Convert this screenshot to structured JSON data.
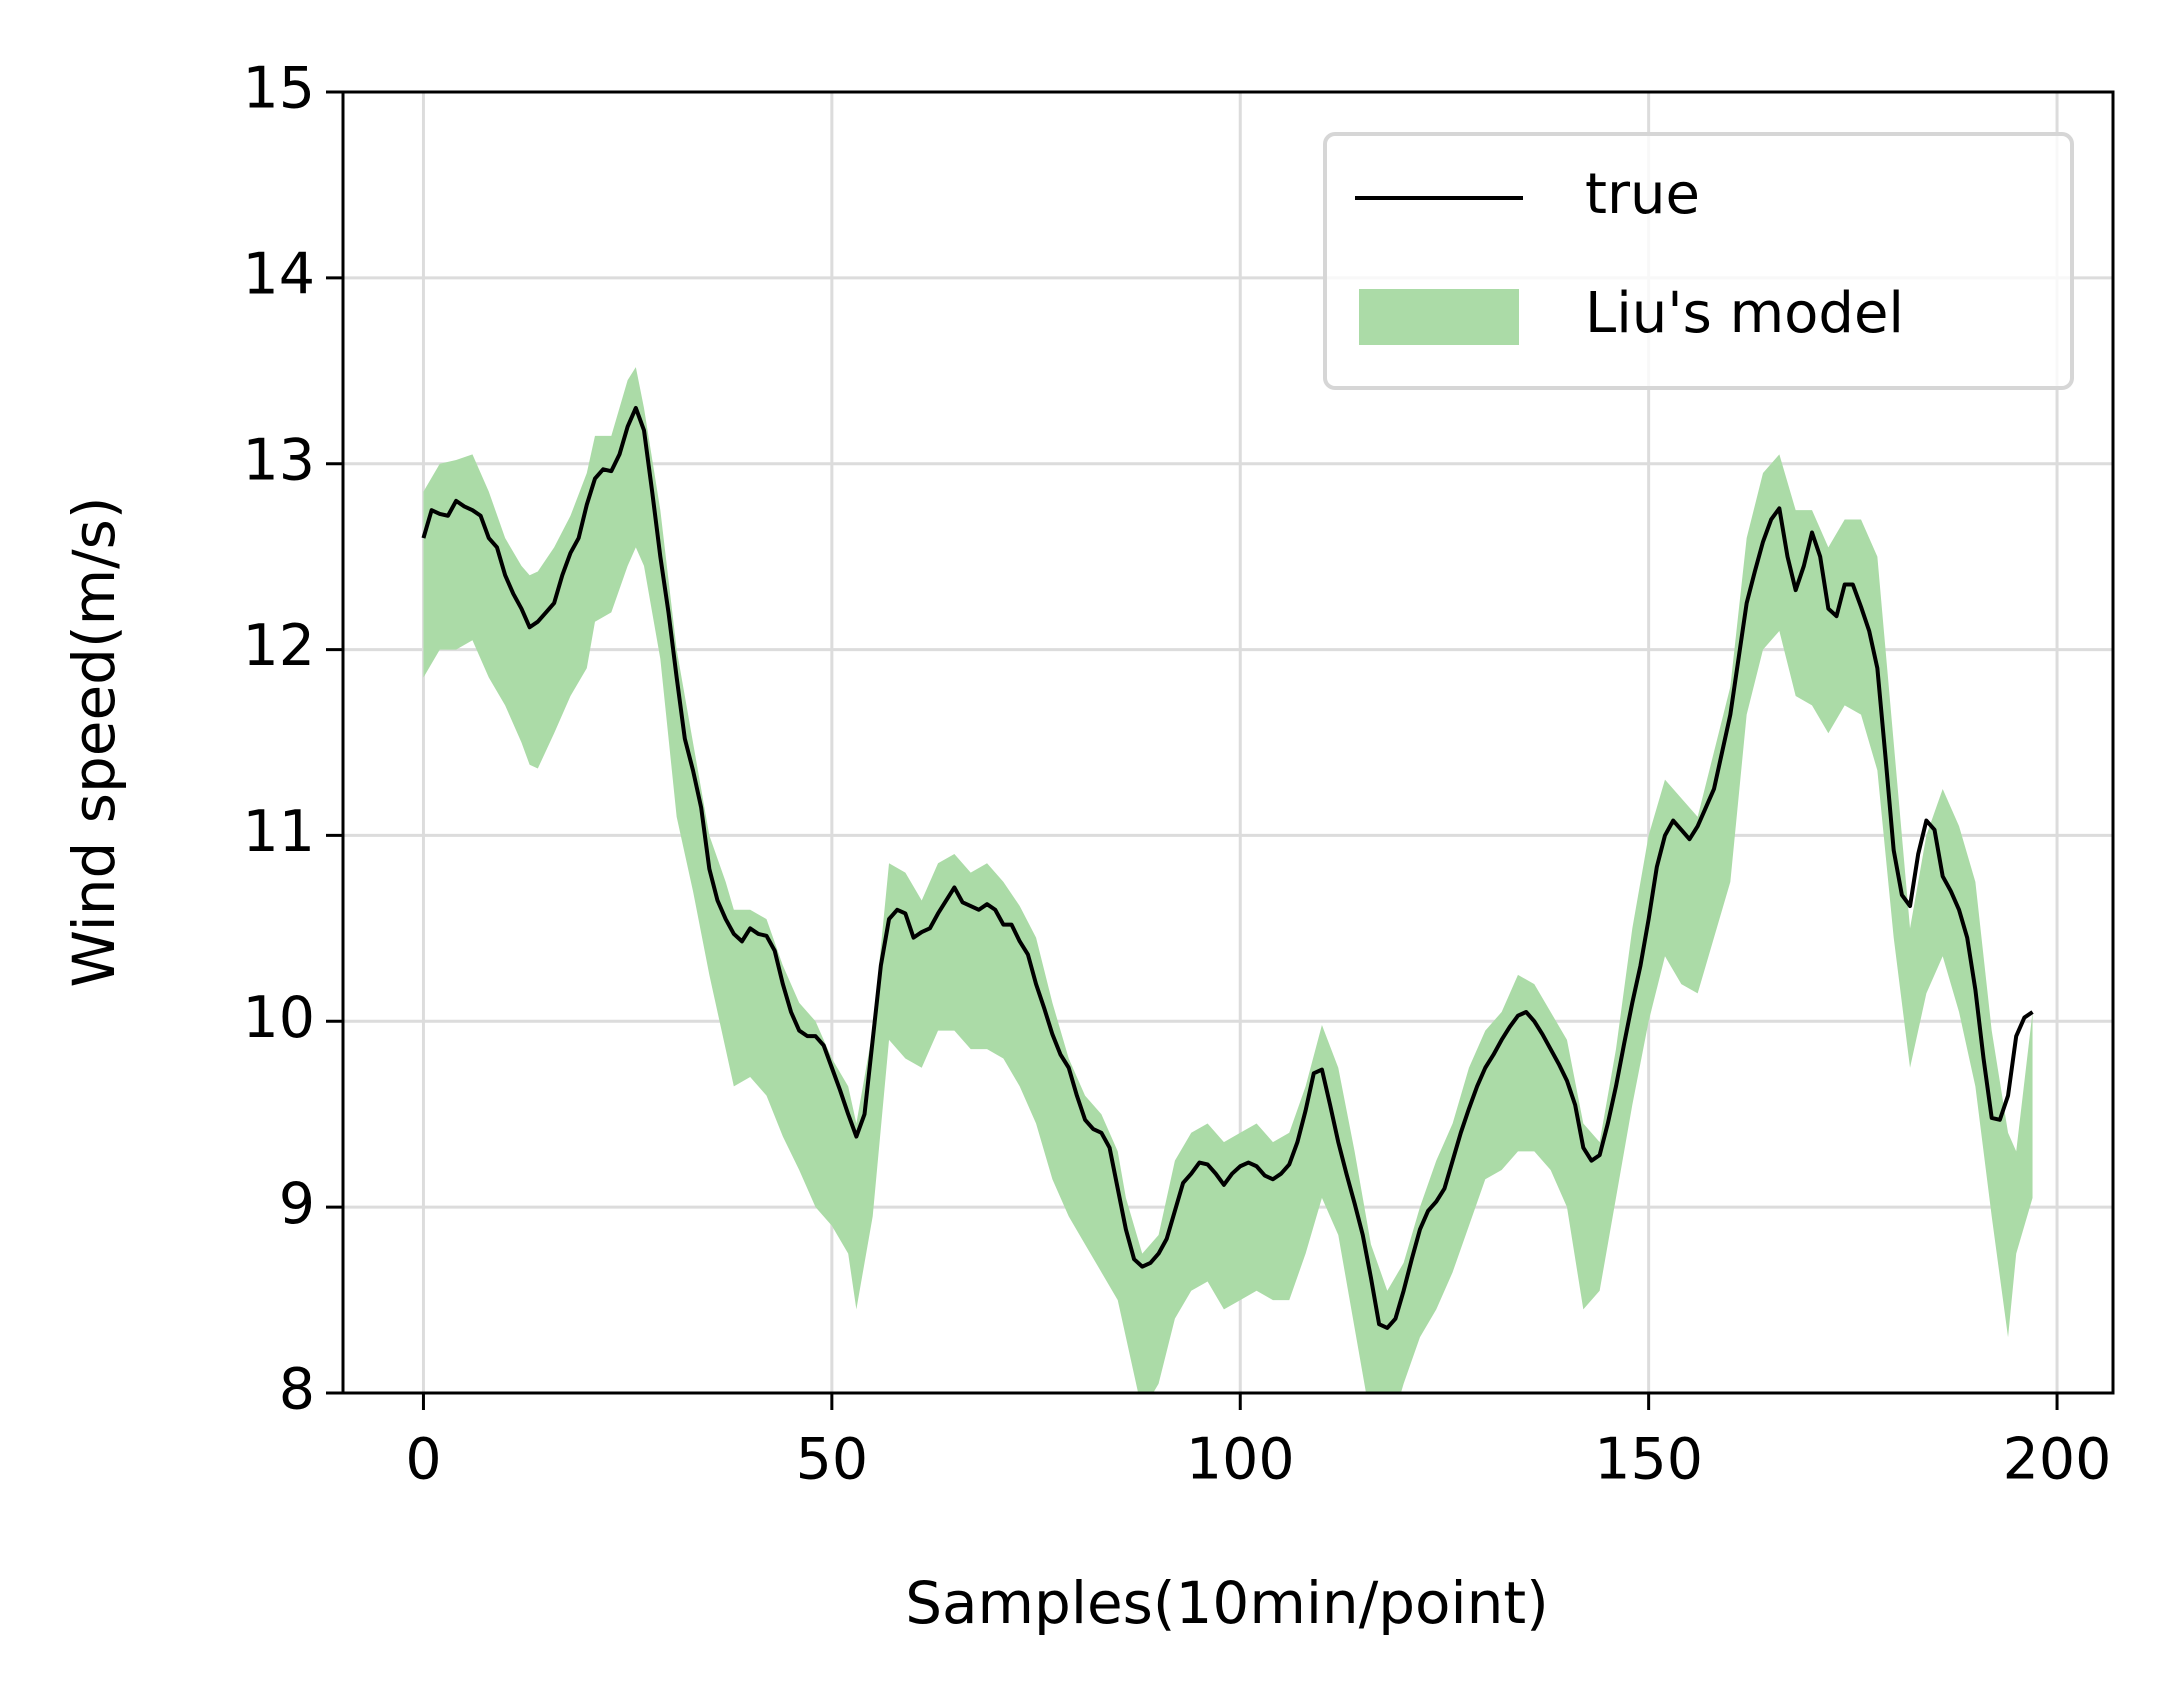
{
  "chart_data": {
    "type": "line",
    "xlabel": "Samples(10min/point)",
    "ylabel": "Wind speed(m/s)",
    "xlim": [
      -9.85,
      206.85
    ],
    "ylim": [
      8,
      15
    ],
    "xticks": [
      0,
      50,
      100,
      150,
      200
    ],
    "yticks": [
      8,
      9,
      10,
      11,
      12,
      13,
      14,
      15
    ],
    "grid": true,
    "legend": "upper right",
    "series": [
      {
        "name": "true",
        "color": "#000000",
        "x": [
          0,
          1,
          2,
          3,
          4,
          5,
          6,
          7,
          8,
          9,
          10,
          11,
          12,
          13,
          14,
          15,
          16,
          17,
          18,
          19,
          20,
          21,
          22,
          23,
          24,
          25,
          26,
          27,
          28,
          29,
          30,
          31,
          32,
          33,
          34,
          35,
          36,
          37,
          38,
          39,
          40,
          41,
          42,
          43,
          44,
          45,
          46,
          47,
          48,
          49,
          50,
          51,
          52,
          53,
          54,
          55,
          56,
          57,
          58,
          59,
          60,
          61,
          62,
          63,
          64,
          65,
          66,
          67,
          68,
          69,
          70,
          71,
          72,
          73,
          74,
          75,
          76,
          77,
          78,
          79,
          80,
          81,
          82,
          83,
          84,
          85,
          86,
          87,
          88,
          89,
          90,
          91,
          92,
          93,
          94,
          95,
          96,
          97,
          98,
          99,
          100,
          101,
          102,
          103,
          104,
          105,
          106,
          107,
          108,
          109,
          110,
          111,
          112,
          113,
          114,
          115,
          116,
          117,
          118,
          119,
          120,
          121,
          122,
          123,
          124,
          125,
          126,
          127,
          128,
          129,
          130,
          131,
          132,
          133,
          134,
          135,
          136,
          137,
          138,
          139,
          140,
          141,
          142,
          143,
          144,
          145,
          146,
          147,
          148,
          149,
          150,
          151,
          152,
          153,
          154,
          155,
          156,
          157,
          158,
          159,
          160,
          161,
          162,
          163,
          164,
          165,
          166,
          167,
          168,
          169,
          170,
          171,
          172,
          173,
          174,
          175,
          176,
          177,
          178,
          179,
          180,
          181,
          182,
          183,
          184,
          185,
          186,
          187,
          188,
          189,
          190,
          191,
          192,
          193,
          194,
          195,
          196,
          197
        ],
        "values": [
          12.6,
          12.75,
          12.73,
          12.72,
          12.8,
          12.77,
          12.75,
          12.72,
          12.6,
          12.55,
          12.4,
          12.3,
          12.22,
          12.12,
          12.15,
          12.2,
          12.25,
          12.4,
          12.52,
          12.6,
          12.78,
          12.92,
          12.97,
          12.96,
          13.05,
          13.2,
          13.3,
          13.18,
          12.85,
          12.5,
          12.2,
          11.85,
          11.52,
          11.35,
          11.15,
          10.82,
          10.65,
          10.55,
          10.47,
          10.43,
          10.5,
          10.47,
          10.46,
          10.38,
          10.2,
          10.05,
          9.95,
          9.92,
          9.92,
          9.87,
          9.75,
          9.63,
          9.5,
          9.38,
          9.5,
          9.9,
          10.3,
          10.55,
          10.6,
          10.58,
          10.45,
          10.48,
          10.5,
          10.58,
          10.65,
          10.72,
          10.64,
          10.62,
          10.6,
          10.63,
          10.6,
          10.52,
          10.52,
          10.43,
          10.36,
          10.2,
          10.07,
          9.93,
          9.82,
          9.75,
          9.6,
          9.47,
          9.42,
          9.4,
          9.32,
          9.1,
          8.88,
          8.72,
          8.68,
          8.7,
          8.75,
          8.83,
          8.98,
          9.13,
          9.18,
          9.24,
          9.23,
          9.18,
          9.12,
          9.18,
          9.22,
          9.24,
          9.22,
          9.17,
          9.15,
          9.18,
          9.23,
          9.35,
          9.52,
          9.72,
          9.74,
          9.55,
          9.35,
          9.18,
          9.02,
          8.85,
          8.62,
          8.37,
          8.35,
          8.4,
          8.55,
          8.72,
          8.88,
          8.98,
          9.03,
          9.1,
          9.25,
          9.4,
          9.53,
          9.65,
          9.75,
          9.82,
          9.9,
          9.97,
          10.03,
          10.05,
          10.0,
          9.93,
          9.85,
          9.77,
          9.68,
          9.55,
          9.32,
          9.25,
          9.28,
          9.45,
          9.65,
          9.88,
          10.1,
          10.3,
          10.55,
          10.83,
          11.0,
          11.08,
          11.03,
          10.98,
          11.05,
          11.15,
          11.25,
          11.45,
          11.65,
          11.95,
          12.25,
          12.42,
          12.58,
          12.7,
          12.76,
          12.5,
          12.32,
          12.45,
          12.63,
          12.5,
          12.22,
          12.18,
          12.35,
          12.35,
          12.23,
          12.1,
          11.9,
          11.42,
          10.92,
          10.68,
          10.62,
          10.9,
          11.08,
          11.03,
          10.78,
          10.7,
          10.6,
          10.45,
          10.17,
          9.8,
          9.48,
          9.47,
          9.6,
          9.92,
          10.02,
          10.05
        ]
      },
      {
        "name": "Liu's model",
        "color": "#abdba7",
        "x": [
          0,
          2,
          4,
          6,
          8,
          10,
          12,
          13,
          14,
          16,
          18,
          20,
          21,
          23,
          25,
          26,
          27,
          29,
          31,
          33,
          35,
          37,
          38,
          40,
          42,
          44,
          46,
          48,
          50,
          52,
          53,
          55,
          57,
          59,
          61,
          63,
          65,
          67,
          69,
          71,
          73,
          75,
          77,
          79,
          81,
          83,
          85,
          86,
          88,
          90,
          92,
          94,
          96,
          98,
          100,
          102,
          104,
          106,
          108,
          110,
          112,
          114,
          116,
          118,
          120,
          122,
          124,
          126,
          128,
          130,
          132,
          134,
          136,
          138,
          140,
          142,
          144,
          146,
          148,
          150,
          152,
          154,
          156,
          158,
          160,
          162,
          164,
          166,
          168,
          170,
          172,
          174,
          176,
          178,
          180,
          182,
          184,
          186,
          188,
          190,
          192,
          194,
          195,
          197
        ],
        "lower": [
          11.85,
          12.0,
          12.0,
          12.05,
          11.85,
          11.7,
          11.5,
          11.38,
          11.36,
          11.55,
          11.75,
          11.9,
          12.15,
          12.2,
          12.45,
          12.55,
          12.45,
          11.95,
          11.1,
          10.7,
          10.25,
          9.85,
          9.65,
          9.7,
          9.6,
          9.38,
          9.2,
          9.0,
          8.9,
          8.75,
          8.45,
          8.95,
          9.9,
          9.8,
          9.75,
          9.95,
          9.95,
          9.85,
          9.85,
          9.8,
          9.65,
          9.45,
          9.15,
          8.95,
          8.8,
          8.65,
          8.5,
          8.3,
          7.9,
          8.05,
          8.4,
          8.55,
          8.6,
          8.45,
          8.5,
          8.55,
          8.5,
          8.5,
          8.75,
          9.05,
          8.85,
          8.35,
          7.85,
          7.75,
          8.05,
          8.3,
          8.45,
          8.65,
          8.9,
          9.15,
          9.2,
          9.3,
          9.3,
          9.2,
          9.0,
          8.45,
          8.55,
          9.05,
          9.55,
          10.0,
          10.35,
          10.2,
          10.15,
          10.45,
          10.75,
          11.65,
          12.0,
          12.1,
          11.75,
          11.7,
          11.55,
          11.7,
          11.65,
          11.35,
          10.45,
          9.75,
          10.15,
          10.35,
          10.05,
          9.65,
          8.95,
          8.3,
          8.75,
          9.05
        ],
        "upper": [
          12.85,
          13.0,
          13.02,
          13.05,
          12.85,
          12.6,
          12.45,
          12.4,
          12.42,
          12.55,
          12.72,
          12.95,
          13.15,
          13.15,
          13.45,
          13.52,
          13.3,
          12.75,
          12.0,
          11.5,
          11.0,
          10.75,
          10.6,
          10.6,
          10.55,
          10.3,
          10.1,
          10.0,
          9.8,
          9.65,
          9.45,
          9.95,
          10.85,
          10.8,
          10.65,
          10.85,
          10.9,
          10.8,
          10.85,
          10.75,
          10.62,
          10.45,
          10.1,
          9.8,
          9.6,
          9.5,
          9.3,
          9.05,
          8.75,
          8.85,
          9.25,
          9.4,
          9.45,
          9.35,
          9.4,
          9.45,
          9.35,
          9.4,
          9.65,
          9.98,
          9.75,
          9.3,
          8.8,
          8.55,
          8.7,
          9.0,
          9.25,
          9.45,
          9.75,
          9.95,
          10.05,
          10.25,
          10.2,
          10.05,
          9.9,
          9.45,
          9.35,
          9.85,
          10.5,
          11.0,
          11.3,
          11.2,
          11.1,
          11.45,
          11.8,
          12.6,
          12.95,
          13.05,
          12.75,
          12.75,
          12.55,
          12.7,
          12.7,
          12.5,
          11.5,
          10.5,
          11.0,
          11.25,
          11.05,
          10.75,
          9.95,
          9.4,
          9.3,
          10.05
        ]
      }
    ]
  }
}
